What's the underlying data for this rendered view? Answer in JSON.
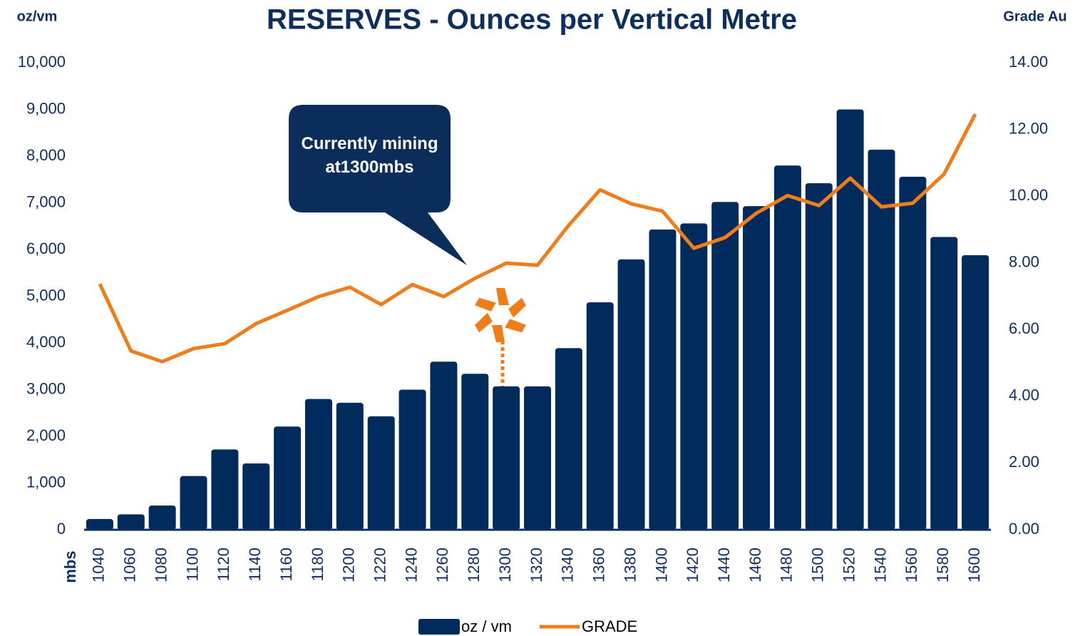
{
  "chart_data": {
    "type": "bar_line",
    "title": "RESERVES - Ounces per Vertical Metre",
    "y_label": "oz/vm",
    "y2_label": "Grade Au",
    "x_label": "mbs",
    "annotation": "Currently mining at1300mbs",
    "categories": [
      "1040",
      "1060",
      "1080",
      "1100",
      "1120",
      "1140",
      "1160",
      "1180",
      "1200",
      "1220",
      "1240",
      "1260",
      "1280",
      "1300",
      "1320",
      "1340",
      "1360",
      "1380",
      "1400",
      "1420",
      "1440",
      "1460",
      "1480",
      "1500",
      "1520",
      "1540",
      "1560",
      "1580",
      "1600"
    ],
    "series": [
      {
        "name": "oz / vm",
        "type": "bar",
        "color": "#002b5c",
        "values": [
          230,
          330,
          520,
          1150,
          1720,
          1420,
          2210,
          2800,
          2720,
          2430,
          3000,
          3600,
          3340,
          3070,
          3070,
          3890,
          4870,
          5790,
          6430,
          6560,
          7020,
          6930,
          7800,
          7420,
          9000,
          8140,
          7560,
          6270,
          5880
        ]
      },
      {
        "name": "GRADE",
        "type": "line",
        "axis": "y2",
        "color": "#f07d1a",
        "values": [
          7.37,
          5.36,
          5.04,
          5.43,
          5.58,
          6.18,
          6.58,
          6.99,
          7.27,
          6.75,
          7.35,
          6.99,
          7.54,
          7.99,
          7.93,
          9.13,
          10.19,
          9.77,
          9.55,
          8.44,
          8.76,
          9.49,
          10.02,
          9.72,
          10.54,
          9.68,
          9.79,
          10.66,
          12.46
        ]
      }
    ],
    "ylim": [
      0,
      10000
    ],
    "yticks": [
      0,
      {
        "value": 1000,
        "label": "1,000"
      },
      {
        "value": 2000,
        "label": "2,000"
      },
      {
        "value": 3000,
        "label": "3,000"
      },
      {
        "value": 4000,
        "label": "4,000"
      },
      {
        "value": 5000,
        "label": "5,000"
      },
      {
        "value": 6000,
        "label": "6,000"
      },
      {
        "value": 7000,
        "label": "7,000"
      },
      {
        "value": 8000,
        "label": "8,000"
      },
      {
        "value": 9000,
        "label": "9,000"
      },
      {
        "value": 10000,
        "label": "10,000"
      }
    ],
    "y2lim": [
      0,
      14
    ],
    "y2ticks": [
      {
        "value": 0,
        "label": "0.00"
      },
      {
        "value": 2,
        "label": "2.00"
      },
      {
        "value": 4,
        "label": "4.00"
      },
      {
        "value": 6,
        "label": "6.00"
      },
      {
        "value": 8,
        "label": "8.00"
      },
      {
        "value": 10,
        "label": "10.00"
      },
      {
        "value": 12,
        "label": "12.00"
      },
      {
        "value": 14,
        "label": "14.00"
      }
    ],
    "legend": "bottom",
    "grid": false
  }
}
